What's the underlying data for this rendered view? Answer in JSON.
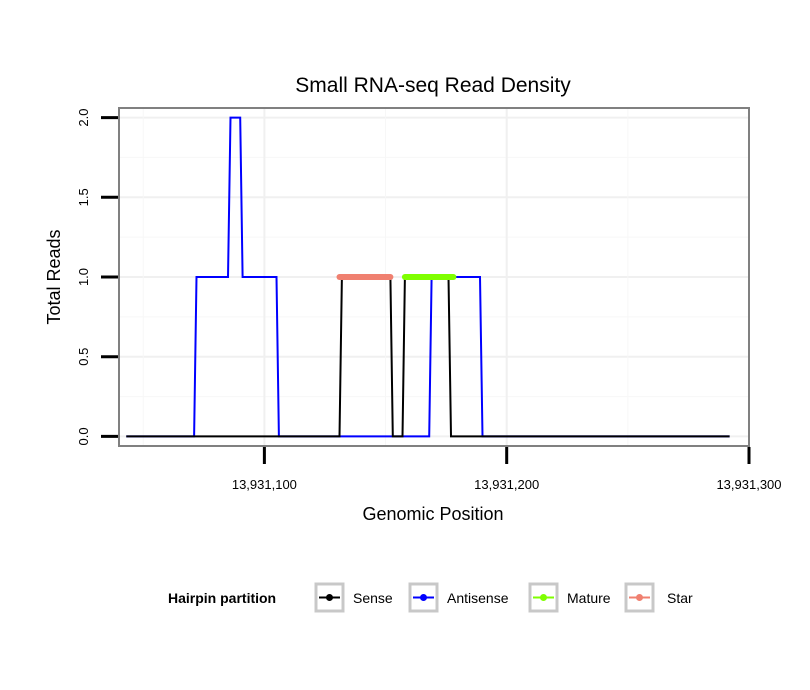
{
  "chart_data": {
    "type": "line",
    "title": "Small RNA-seq Read Density",
    "xlabel": "Genomic Position",
    "ylabel": "Total Reads",
    "xlim": [
      13931040,
      13931300
    ],
    "ylim": [
      -0.06,
      2.06
    ],
    "x_ticks": [
      13931100,
      13931200,
      13931300
    ],
    "x_tick_labels": [
      "13,931,100",
      "13,931,200",
      "13,931,300"
    ],
    "y_ticks": [
      0,
      0.5,
      1,
      1.5,
      2
    ],
    "y_tick_labels": [
      "0.0",
      "0.5",
      "1.0",
      "1.5",
      "2.0"
    ],
    "grid": true,
    "legend_position": "bottom",
    "legend_title": "Hairpin partition",
    "series": [
      {
        "name": "Antisense",
        "color": "#0000FF",
        "points": [
          [
            13931043,
            0
          ],
          [
            13931071,
            0
          ],
          [
            13931072,
            1
          ],
          [
            13931085,
            1
          ],
          [
            13931086,
            2
          ],
          [
            13931090,
            2
          ],
          [
            13931091,
            1
          ],
          [
            13931105,
            1
          ],
          [
            13931106,
            0
          ],
          [
            13931168,
            0
          ],
          [
            13931169,
            1
          ],
          [
            13931189,
            1
          ],
          [
            13931190,
            0
          ],
          [
            13931292,
            0
          ]
        ]
      },
      {
        "name": "Sense",
        "color": "#000000",
        "points": [
          [
            13931043,
            0
          ],
          [
            13931131,
            0
          ],
          [
            13931132,
            1
          ],
          [
            13931152,
            1
          ],
          [
            13931153,
            0
          ],
          [
            13931157,
            0
          ],
          [
            13931158,
            1
          ],
          [
            13931176,
            1
          ],
          [
            13931177,
            0
          ],
          [
            13931292,
            0
          ]
        ]
      },
      {
        "name": "Mature",
        "color": "#7FFF00",
        "points": [
          [
            13931158,
            1
          ],
          [
            13931178,
            1
          ]
        ]
      },
      {
        "name": "Star",
        "color": "#F08070",
        "points": [
          [
            13931131,
            1
          ],
          [
            13931152,
            1
          ]
        ]
      }
    ],
    "legend": [
      {
        "label": "Sense",
        "color": "#000000"
      },
      {
        "label": "Antisense",
        "color": "#0000FF"
      },
      {
        "label": "Mature",
        "color": "#7FFF00"
      },
      {
        "label": "Star",
        "color": "#F08070"
      }
    ]
  }
}
